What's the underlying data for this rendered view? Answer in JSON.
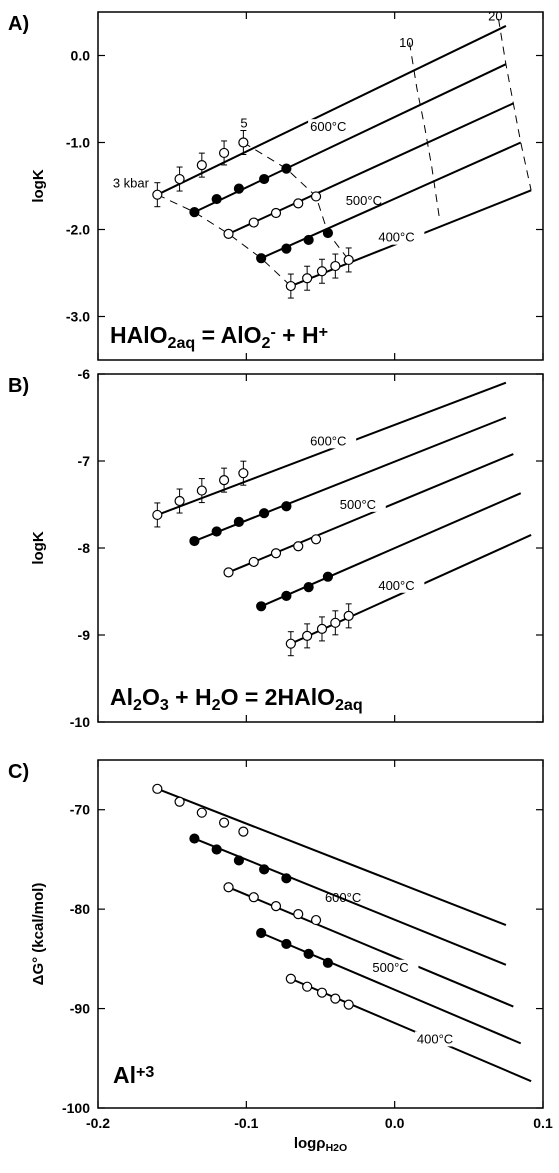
{
  "chart_data": [
    {
      "id": "A",
      "type": "line",
      "panel_label": "A)",
      "ylabel": "logK",
      "reaction": [
        {
          "t": "HAlO"
        },
        {
          "t": "2aq",
          "sub": true
        },
        {
          "t": " = AlO"
        },
        {
          "t": "2",
          "sub": true
        },
        {
          "t": "-",
          "sup": true
        },
        {
          "t": " + H"
        },
        {
          "t": "+",
          "sup": true
        }
      ],
      "xlim": [
        -0.2,
        0.1
      ],
      "ylim": [
        -3.5,
        0.5
      ],
      "yticks": [
        0.0,
        -1.0,
        -2.0,
        -3.0
      ],
      "ytick_labels": [
        "0.0",
        "-1.0",
        "-2.0",
        "-3.0"
      ],
      "xticks": [
        -0.2,
        -0.1,
        0.0,
        0.1
      ],
      "series": [
        {
          "name": "600°C",
          "label_pos": [
            -0.057,
            -0.87
          ],
          "line_x": [
            -0.16,
            0.075
          ],
          "line_y": [
            -1.6,
            0.34
          ],
          "markers": "open",
          "errorbars": true,
          "points": [
            [
              -0.16,
              -1.6
            ],
            [
              -0.145,
              -1.42
            ],
            [
              -0.13,
              -1.26
            ],
            [
              -0.115,
              -1.12
            ],
            [
              -0.102,
              -1.0
            ]
          ]
        },
        {
          "name": "",
          "line_x": [
            -0.135,
            0.075
          ],
          "line_y": [
            -1.8,
            -0.1
          ],
          "markers": "filled",
          "errorbars": false,
          "points": [
            [
              -0.135,
              -1.8
            ],
            [
              -0.12,
              -1.65
            ],
            [
              -0.105,
              -1.53
            ],
            [
              -0.088,
              -1.42
            ],
            [
              -0.073,
              -1.3
            ]
          ]
        },
        {
          "name": "500°C",
          "label_pos": [
            -0.033,
            -1.72
          ],
          "line_x": [
            -0.112,
            0.08
          ],
          "line_y": [
            -2.05,
            -0.55
          ],
          "markers": "open",
          "errorbars": false,
          "points": [
            [
              -0.112,
              -2.05
            ],
            [
              -0.095,
              -1.92
            ],
            [
              -0.08,
              -1.81
            ],
            [
              -0.065,
              -1.7
            ],
            [
              -0.053,
              -1.62
            ]
          ]
        },
        {
          "name": "",
          "line_x": [
            -0.09,
            0.085
          ],
          "line_y": [
            -2.33,
            -1.0
          ],
          "markers": "filled",
          "errorbars": false,
          "points": [
            [
              -0.09,
              -2.33
            ],
            [
              -0.073,
              -2.22
            ],
            [
              -0.058,
              -2.12
            ],
            [
              -0.045,
              -2.04
            ]
          ]
        },
        {
          "name": "400°C",
          "label_pos": [
            -0.011,
            -2.14
          ],
          "line_x": [
            -0.07,
            0.092
          ],
          "line_y": [
            -2.65,
            -1.55
          ],
          "markers": "open",
          "errorbars": true,
          "points": [
            [
              -0.07,
              -2.65
            ],
            [
              -0.059,
              -2.56
            ],
            [
              -0.049,
              -2.48
            ],
            [
              -0.04,
              -2.42
            ],
            [
              -0.031,
              -2.35
            ]
          ]
        }
      ],
      "isobars": [
        {
          "label": "3 kbar",
          "label_pos": [
            -0.19,
            -1.52
          ],
          "x": [
            -0.16,
            -0.135,
            -0.112,
            -0.09,
            -0.07
          ],
          "y": [
            -1.6,
            -1.8,
            -2.05,
            -2.33,
            -2.65
          ]
        },
        {
          "label": "5",
          "label_pos": [
            -0.104,
            -0.83
          ],
          "x": [
            -0.102,
            -0.073,
            -0.053,
            -0.045,
            -0.031
          ],
          "y": [
            -1.0,
            -1.3,
            -1.62,
            -2.04,
            -2.35
          ]
        },
        {
          "label": "10",
          "label_pos": [
            0.003,
            0.1
          ],
          "x": [
            0.01,
            0.015,
            0.02,
            0.025,
            0.03
          ],
          "y": [
            0.15,
            -0.38,
            -0.8,
            -1.28,
            -1.85
          ]
        },
        {
          "label": "20",
          "label_pos": [
            0.063,
            0.4
          ],
          "x": [
            0.07,
            0.075,
            0.08,
            0.085,
            0.092
          ],
          "y": [
            0.42,
            -0.1,
            -0.55,
            -1.0,
            -1.55
          ]
        }
      ]
    },
    {
      "id": "B",
      "type": "line",
      "panel_label": "B)",
      "ylabel": "logK",
      "reaction": [
        {
          "t": "Al"
        },
        {
          "t": "2",
          "sub": true
        },
        {
          "t": "O"
        },
        {
          "t": "3",
          "sub": true
        },
        {
          "t": " + H"
        },
        {
          "t": "2",
          "sub": true
        },
        {
          "t": "O = 2HAlO"
        },
        {
          "t": "2aq",
          "sub": true
        }
      ],
      "xlim": [
        -0.2,
        0.1
      ],
      "ylim": [
        -10,
        -6
      ],
      "yticks": [
        -6,
        -7,
        -8,
        -9,
        -10
      ],
      "ytick_labels": [
        "-6",
        "-7",
        "-8",
        "-9",
        "-10"
      ],
      "xticks": [
        -0.2,
        -0.1,
        0.0,
        0.1
      ],
      "series": [
        {
          "name": "600°C",
          "label_pos": [
            -0.057,
            -6.82
          ],
          "line_x": [
            -0.16,
            0.075
          ],
          "line_y": [
            -7.62,
            -6.1
          ],
          "markers": "open",
          "errorbars": true,
          "points": [
            [
              -0.16,
              -7.62
            ],
            [
              -0.145,
              -7.46
            ],
            [
              -0.13,
              -7.34
            ],
            [
              -0.115,
              -7.22
            ],
            [
              -0.102,
              -7.14
            ]
          ]
        },
        {
          "name": "",
          "line_x": [
            -0.135,
            0.075
          ],
          "line_y": [
            -7.92,
            -6.5
          ],
          "markers": "filled",
          "errorbars": false,
          "points": [
            [
              -0.135,
              -7.92
            ],
            [
              -0.12,
              -7.81
            ],
            [
              -0.105,
              -7.7
            ],
            [
              -0.088,
              -7.6
            ],
            [
              -0.073,
              -7.52
            ]
          ]
        },
        {
          "name": "500°C",
          "label_pos": [
            -0.037,
            -7.55
          ],
          "line_x": [
            -0.112,
            0.08
          ],
          "line_y": [
            -8.28,
            -6.92
          ],
          "markers": "open",
          "errorbars": false,
          "points": [
            [
              -0.112,
              -8.28
            ],
            [
              -0.095,
              -8.16
            ],
            [
              -0.08,
              -8.06
            ],
            [
              -0.065,
              -7.98
            ],
            [
              -0.053,
              -7.9
            ]
          ]
        },
        {
          "name": "",
          "line_x": [
            -0.09,
            0.085
          ],
          "line_y": [
            -8.67,
            -7.37
          ],
          "markers": "filled",
          "errorbars": false,
          "points": [
            [
              -0.09,
              -8.67
            ],
            [
              -0.073,
              -8.55
            ],
            [
              -0.058,
              -8.45
            ],
            [
              -0.045,
              -8.33
            ]
          ]
        },
        {
          "name": "400°C",
          "label_pos": [
            -0.011,
            -8.48
          ],
          "line_x": [
            -0.07,
            0.092
          ],
          "line_y": [
            -9.1,
            -7.85
          ],
          "markers": "open",
          "errorbars": true,
          "points": [
            [
              -0.07,
              -9.1
            ],
            [
              -0.059,
              -9.01
            ],
            [
              -0.049,
              -8.93
            ],
            [
              -0.04,
              -8.86
            ],
            [
              -0.031,
              -8.78
            ]
          ]
        }
      ],
      "isobars": []
    },
    {
      "id": "C",
      "type": "line",
      "panel_label": "C)",
      "ylabel": "ΔG° (kcal/mol)",
      "reaction": [
        {
          "t": "Al"
        },
        {
          "t": "+3",
          "sup": true
        }
      ],
      "xlim": [
        -0.2,
        0.1
      ],
      "ylim": [
        -100,
        -65
      ],
      "yticks": [
        -70,
        -80,
        -90,
        -100
      ],
      "ytick_labels": [
        "-70",
        "-80",
        "-90",
        "-100"
      ],
      "xticks": [
        -0.2,
        -0.1,
        0.0,
        0.1
      ],
      "xtick_labels": [
        "-0.2",
        "-0.1",
        "0.0",
        "0.1"
      ],
      "xlabel": [
        {
          "t": "logρ"
        },
        {
          "t": "H2O",
          "sub": true
        }
      ],
      "series": [
        {
          "name": "600°C",
          "label_pos": [
            -0.047,
            -79.3
          ],
          "line_x": [
            -0.16,
            0.075
          ],
          "line_y": [
            -67.9,
            -81.6
          ],
          "markers": "open",
          "errorbars": false,
          "points": [
            [
              -0.16,
              -67.9
            ],
            [
              -0.145,
              -69.2
            ],
            [
              -0.13,
              -70.3
            ],
            [
              -0.115,
              -71.3
            ],
            [
              -0.102,
              -72.2
            ]
          ]
        },
        {
          "name": "",
          "line_x": [
            -0.135,
            0.075
          ],
          "line_y": [
            -72.9,
            -85.6
          ],
          "markers": "filled",
          "errorbars": false,
          "points": [
            [
              -0.135,
              -72.9
            ],
            [
              -0.12,
              -74.0
            ],
            [
              -0.105,
              -75.1
            ],
            [
              -0.088,
              -76.0
            ],
            [
              -0.073,
              -76.9
            ]
          ]
        },
        {
          "name": "500°C",
          "label_pos": [
            -0.015,
            -86.3
          ],
          "line_x": [
            -0.112,
            0.08
          ],
          "line_y": [
            -77.8,
            -89.8
          ],
          "markers": "open",
          "errorbars": false,
          "points": [
            [
              -0.112,
              -77.8
            ],
            [
              -0.095,
              -78.8
            ],
            [
              -0.08,
              -79.7
            ],
            [
              -0.065,
              -80.5
            ],
            [
              -0.053,
              -81.1
            ]
          ]
        },
        {
          "name": "",
          "line_x": [
            -0.09,
            0.085
          ],
          "line_y": [
            -82.4,
            -93.5
          ],
          "markers": "filled",
          "errorbars": false,
          "points": [
            [
              -0.09,
              -82.4
            ],
            [
              -0.073,
              -83.5
            ],
            [
              -0.058,
              -84.5
            ],
            [
              -0.045,
              -85.4
            ]
          ]
        },
        {
          "name": "400°C",
          "label_pos": [
            0.015,
            -93.5
          ],
          "line_x": [
            -0.07,
            0.092
          ],
          "line_y": [
            -87.0,
            -97.3
          ],
          "markers": "open",
          "errorbars": false,
          "points": [
            [
              -0.07,
              -87.0
            ],
            [
              -0.059,
              -87.8
            ],
            [
              -0.049,
              -88.4
            ],
            [
              -0.04,
              -89.0
            ],
            [
              -0.031,
              -89.6
            ]
          ]
        }
      ],
      "isobars": []
    }
  ]
}
